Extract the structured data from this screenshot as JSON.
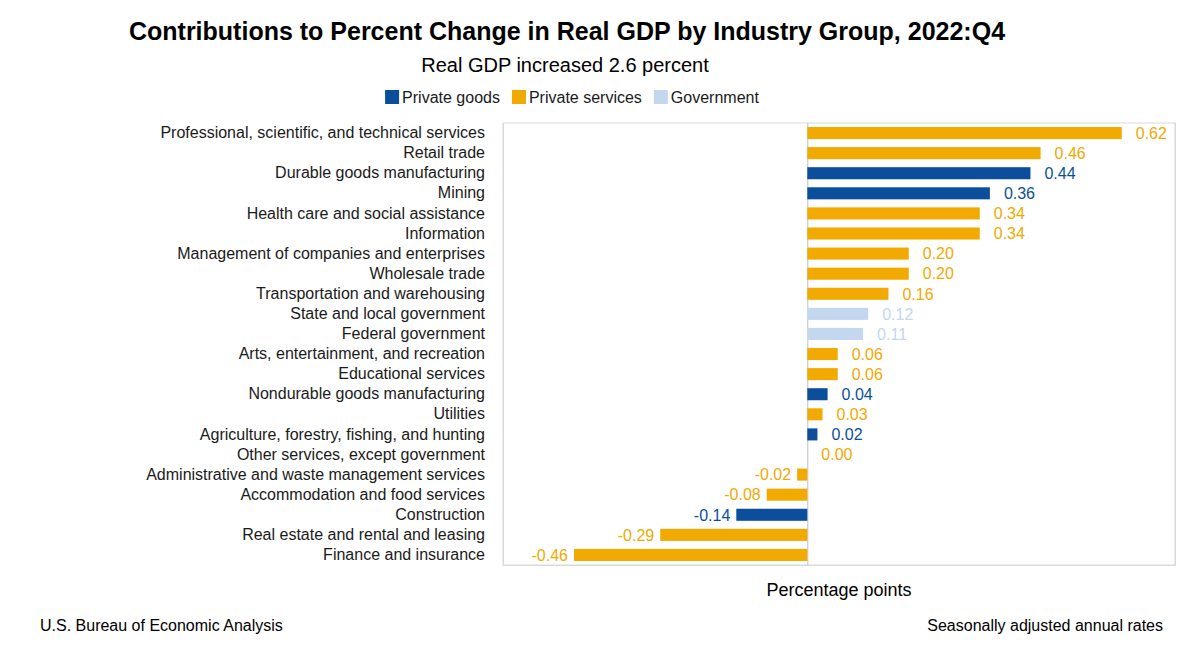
{
  "chart_data": {
    "type": "bar",
    "orientation": "horizontal",
    "title": "Contributions to Percent Change in Real GDP by Industry Group, 2022:Q4",
    "subtitle": "Real GDP increased 2.6 percent",
    "x_label": "Percentage points",
    "source": "U.S. Bureau of Economic Analysis",
    "note": "Seasonally adjusted annual rates",
    "categories": [
      "Professional, scientific, and technical services",
      "Retail trade",
      "Durable goods manufacturing",
      "Mining",
      "Health care and social assistance",
      "Information",
      "Management of companies and enterprises",
      "Wholesale trade",
      "Transportation and warehousing",
      "State and local government",
      "Federal government",
      "Arts, entertainment, and recreation",
      "Educational services",
      "Nondurable goods manufacturing",
      "Utilities",
      "Agriculture, forestry, fishing, and hunting",
      "Other services, except government",
      "Administrative and waste management services",
      "Accommodation and food services",
      "Construction",
      "Real estate and rental and leasing",
      "Finance and insurance"
    ],
    "series": [
      {
        "name": "Private goods",
        "color": "#0b4f9c",
        "values": [
          null,
          null,
          0.44,
          0.36,
          null,
          null,
          null,
          null,
          null,
          null,
          null,
          null,
          null,
          0.04,
          null,
          0.02,
          null,
          null,
          null,
          -0.14,
          null,
          null
        ],
        "value_labels": [
          null,
          null,
          "0.44",
          "0.36",
          null,
          null,
          null,
          null,
          null,
          null,
          null,
          null,
          null,
          "0.04",
          null,
          "0.02",
          null,
          null,
          null,
          "-0.14",
          null,
          null
        ]
      },
      {
        "name": "Private services",
        "color": "#f2a900",
        "values": [
          0.62,
          0.46,
          null,
          null,
          0.34,
          0.34,
          0.2,
          0.2,
          0.16,
          null,
          null,
          0.06,
          0.06,
          null,
          0.03,
          null,
          0,
          -0.02,
          -0.08,
          null,
          -0.29,
          -0.46
        ],
        "value_labels": [
          "0.62",
          "0.46",
          null,
          null,
          "0.34",
          "0.34",
          "0.20",
          "0.20",
          "0.16",
          null,
          null,
          "0.06",
          "0.06",
          null,
          "0.03",
          null,
          "0.00",
          "-0.02",
          "-0.08",
          null,
          "-0.29",
          "-0.46"
        ]
      },
      {
        "name": "Government",
        "color": "#c3d7ef",
        "values": [
          null,
          null,
          null,
          null,
          null,
          null,
          null,
          null,
          null,
          0.12,
          0.11,
          null,
          null,
          null,
          null,
          null,
          null,
          null,
          null,
          null,
          null,
          null
        ],
        "value_labels": [
          null,
          null,
          null,
          null,
          null,
          null,
          null,
          null,
          null,
          "0.12",
          "0.11",
          null,
          null,
          null,
          null,
          null,
          null,
          null,
          null,
          null,
          null,
          null
        ]
      }
    ],
    "xlim": [
      -0.6,
      0.725
    ],
    "xticks": [
      0
    ],
    "tick_labels": false,
    "grid": false,
    "legend": "top",
    "data_labels": true
  }
}
